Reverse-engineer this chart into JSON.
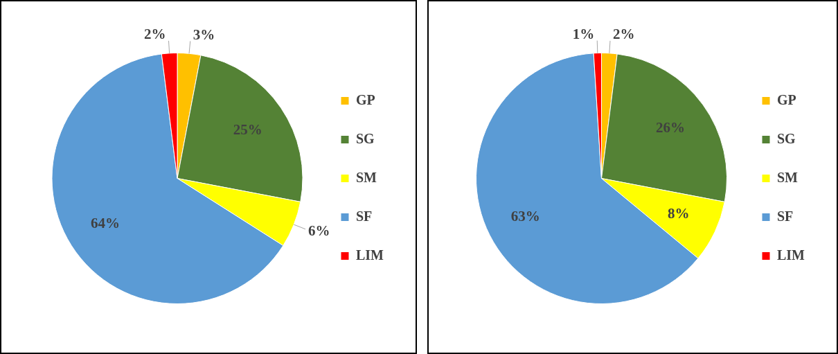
{
  "chart_data": [
    {
      "type": "pie",
      "categories": [
        "GP",
        "SG",
        "SM",
        "SF",
        "LIM"
      ],
      "values": [
        3,
        25,
        6,
        64,
        2
      ],
      "value_labels": [
        "3%",
        "25%",
        "6%",
        "64%",
        "2%"
      ],
      "colors": [
        "#ffc000",
        "#548235",
        "#ffff00",
        "#5b9bd5",
        "#ff0000"
      ],
      "legend": "right"
    },
    {
      "type": "pie",
      "categories": [
        "GP",
        "SG",
        "SM",
        "SF",
        "LIM"
      ],
      "values": [
        2,
        26,
        8,
        63,
        1
      ],
      "value_labels": [
        "2%",
        "26%",
        "8%",
        "63%",
        "1%"
      ],
      "colors": [
        "#ffc000",
        "#548235",
        "#ffff00",
        "#5b9bd5",
        "#ff0000"
      ],
      "legend": "right"
    }
  ]
}
